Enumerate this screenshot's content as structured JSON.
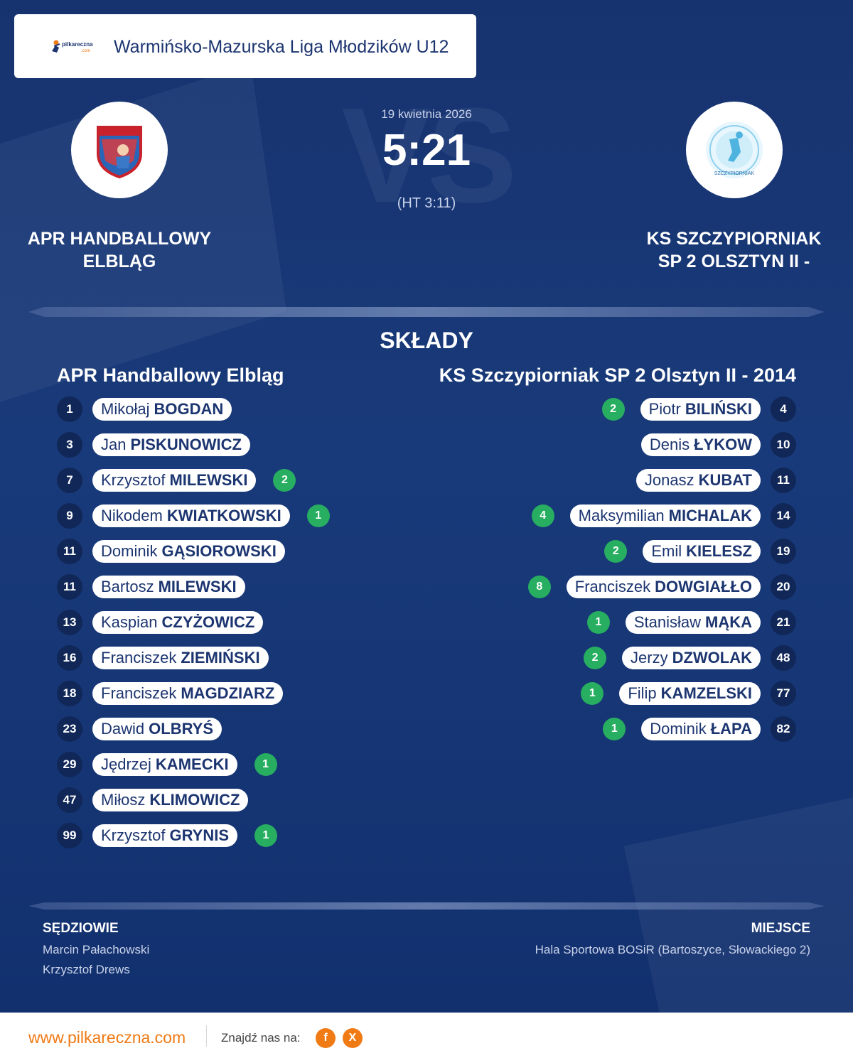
{
  "league": {
    "logo_text": "pilkareczna.com",
    "title": "Warmińsko-Mazurska Liga Młodzików U12"
  },
  "match": {
    "date": "19 kwietnia 2026",
    "score": "5:21",
    "halftime": "(HT 3:11)",
    "watermark": "VS"
  },
  "home": {
    "name_line1": "APR HANDBALLOWY",
    "name_line2": "ELBLĄG",
    "lineup_title": "APR Handballowy Elbląg",
    "players": [
      {
        "number": "1",
        "first": "Mikołaj",
        "last": "BOGDAN",
        "goals": ""
      },
      {
        "number": "3",
        "first": "Jan",
        "last": "PISKUNOWICZ",
        "goals": ""
      },
      {
        "number": "7",
        "first": "Krzysztof",
        "last": "MILEWSKI",
        "goals": "2"
      },
      {
        "number": "9",
        "first": "Nikodem",
        "last": "KWIATKOWSKI",
        "goals": "1"
      },
      {
        "number": "11",
        "first": "Dominik",
        "last": "GĄSIOROWSKI",
        "goals": ""
      },
      {
        "number": "11",
        "first": "Bartosz",
        "last": "MILEWSKI",
        "goals": ""
      },
      {
        "number": "13",
        "first": "Kaspian",
        "last": "CZYŻOWICZ",
        "goals": ""
      },
      {
        "number": "16",
        "first": "Franciszek",
        "last": "ZIEMIŃSKI",
        "goals": ""
      },
      {
        "number": "18",
        "first": "Franciszek",
        "last": "MAGDZIARZ",
        "goals": ""
      },
      {
        "number": "23",
        "first": "Dawid",
        "last": "OLBRYŚ",
        "goals": ""
      },
      {
        "number": "29",
        "first": "Jędrzej",
        "last": "KAMECKI",
        "goals": "1"
      },
      {
        "number": "47",
        "first": "Miłosz",
        "last": "KLIMOWICZ",
        "goals": ""
      },
      {
        "number": "99",
        "first": "Krzysztof",
        "last": "GRYNIS",
        "goals": "1"
      }
    ]
  },
  "away": {
    "name_line1": "KS SZCZYPIORNIAK",
    "name_line2": "SP 2 OLSZTYN II -",
    "lineup_title": "KS Szczypiorniak SP 2 Olsztyn II - 2014",
    "players": [
      {
        "number": "4",
        "first": "Piotr",
        "last": "BILIŃSKI",
        "goals": "2"
      },
      {
        "number": "10",
        "first": "Denis",
        "last": "ŁYKOW",
        "goals": ""
      },
      {
        "number": "11",
        "first": "Jonasz",
        "last": "KUBAT",
        "goals": ""
      },
      {
        "number": "14",
        "first": "Maksymilian",
        "last": "MICHALAK",
        "goals": "4"
      },
      {
        "number": "19",
        "first": "Emil",
        "last": "KIELESZ",
        "goals": "2"
      },
      {
        "number": "20",
        "first": "Franciszek",
        "last": "DOWGIAŁŁO",
        "goals": "8"
      },
      {
        "number": "21",
        "first": "Stanisław",
        "last": "MĄKA",
        "goals": "1"
      },
      {
        "number": "48",
        "first": "Jerzy",
        "last": "DZWOLAK",
        "goals": "2"
      },
      {
        "number": "77",
        "first": "Filip",
        "last": "KAMZELSKI",
        "goals": "1"
      },
      {
        "number": "82",
        "first": "Dominik",
        "last": "ŁAPA",
        "goals": "1"
      }
    ]
  },
  "lineups_title": "SKŁADY",
  "referees": {
    "label": "SĘDZIOWIE",
    "names": [
      "Marcin Pałachowski",
      "Krzysztof Drews"
    ]
  },
  "venue": {
    "label": "MIEJSCE",
    "text": "Hala Sportowa BOSiR (Bartoszyce, Słowackiego 2)"
  },
  "footer": {
    "url": "www.pilkareczna.com",
    "find_us": "Znajdź nas na:",
    "facebook_glyph": "f",
    "x_glyph": "X"
  },
  "colors": {
    "brand_orange": "#f07a14",
    "navy": "#14306a",
    "goal_green": "#27ae60"
  }
}
